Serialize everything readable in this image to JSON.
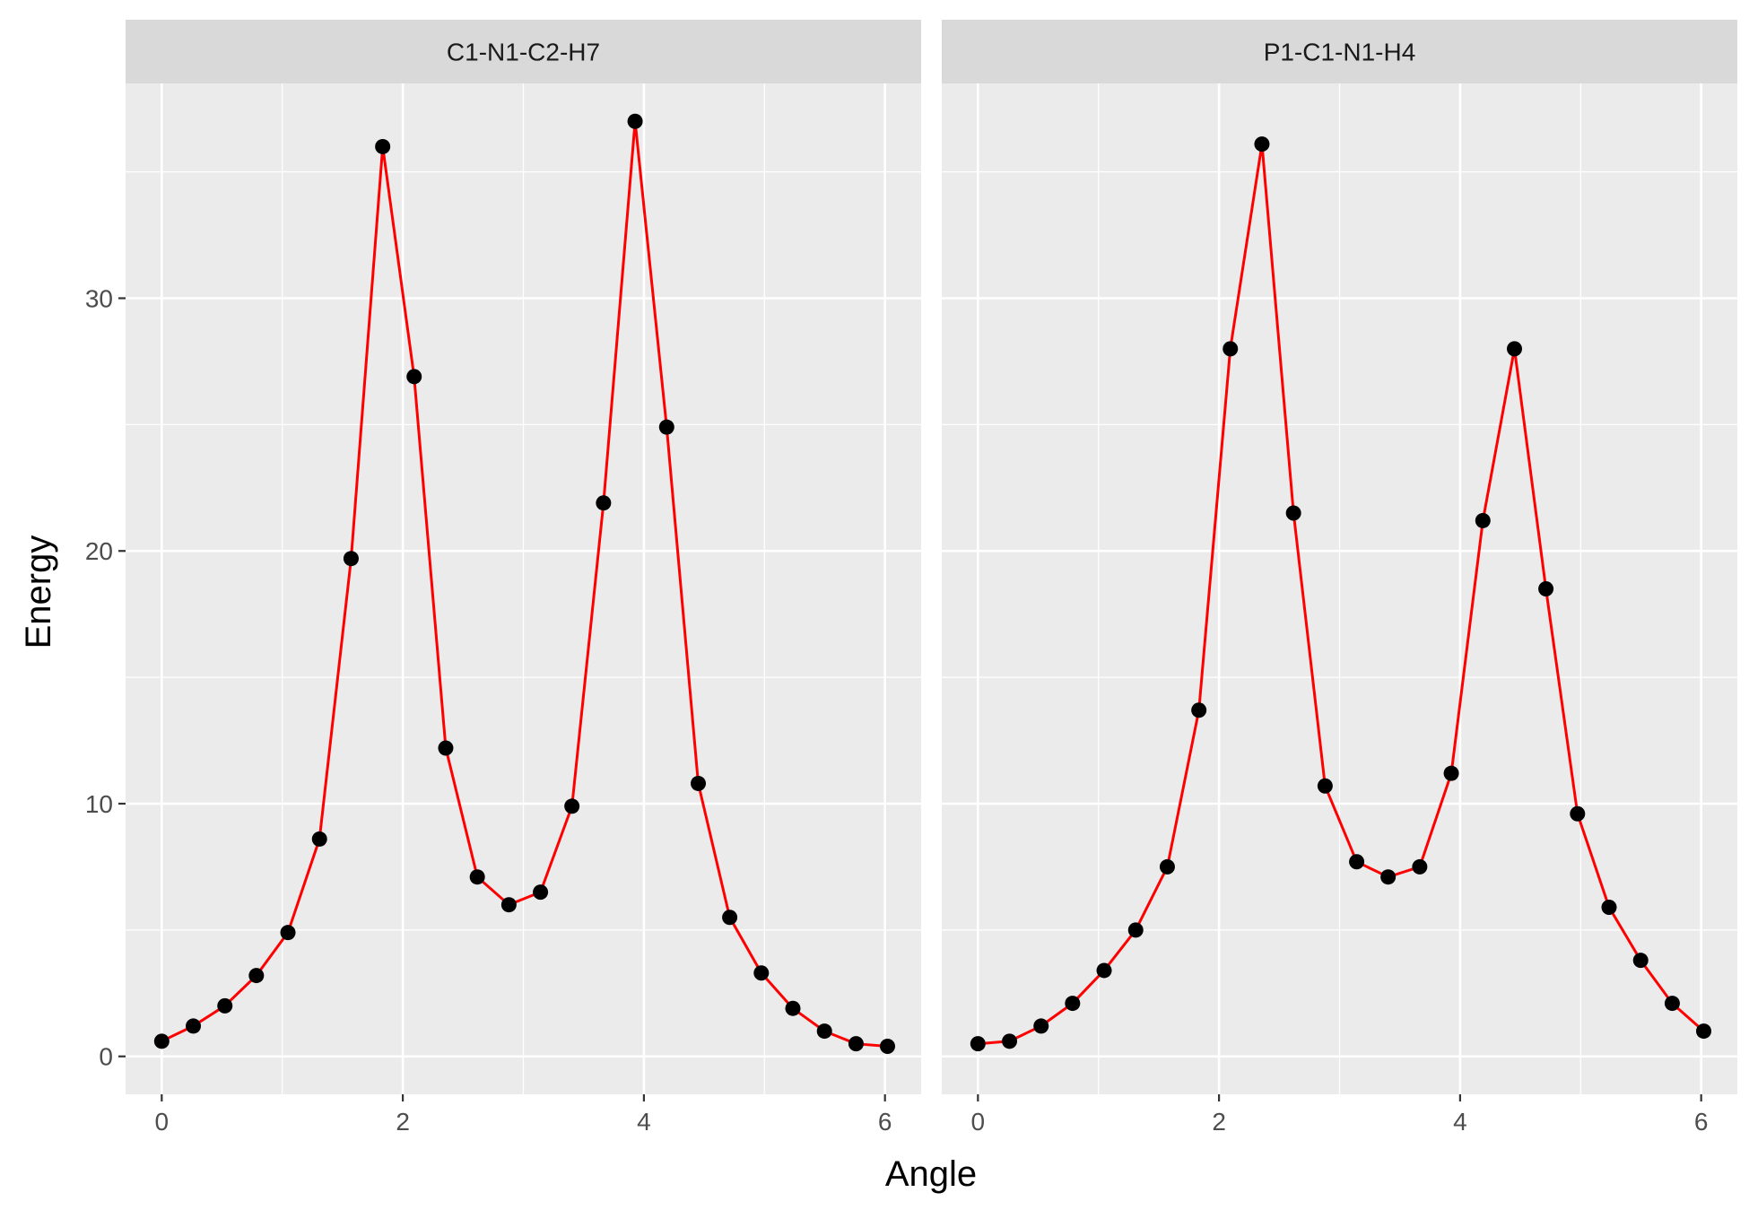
{
  "chart_data": {
    "type": "line",
    "xlabel": "Angle",
    "ylabel": "Energy",
    "xlim": [
      -0.3,
      6.3
    ],
    "ylim": [
      -1.5,
      38.5
    ],
    "x_ticks": [
      0,
      2,
      4,
      6
    ],
    "y_ticks": [
      0,
      10,
      20,
      30
    ],
    "grid": true,
    "line_color": "#ff0000",
    "point_color": "#000000",
    "panel_background": "#ebebeb",
    "strip_background": "#d9d9d9",
    "panels": [
      {
        "label": "C1-N1-C2-H7",
        "points": [
          [
            0.0,
            0.6
          ],
          [
            0.262,
            1.2
          ],
          [
            0.524,
            2.0
          ],
          [
            0.785,
            3.2
          ],
          [
            1.047,
            4.9
          ],
          [
            1.309,
            8.6
          ],
          [
            1.571,
            19.7
          ],
          [
            1.833,
            36.0
          ],
          [
            2.094,
            26.9
          ],
          [
            2.356,
            12.2
          ],
          [
            2.618,
            7.1
          ],
          [
            2.88,
            6.0
          ],
          [
            3.142,
            6.5
          ],
          [
            3.403,
            9.9
          ],
          [
            3.665,
            21.9
          ],
          [
            3.927,
            37.0
          ],
          [
            4.189,
            24.9
          ],
          [
            4.451,
            10.8
          ],
          [
            4.712,
            5.5
          ],
          [
            4.974,
            3.3
          ],
          [
            5.236,
            1.9
          ],
          [
            5.498,
            1.0
          ],
          [
            5.76,
            0.5
          ],
          [
            6.021,
            0.4
          ]
        ]
      },
      {
        "label": "P1-C1-N1-H4",
        "points": [
          [
            0.0,
            0.5
          ],
          [
            0.262,
            0.6
          ],
          [
            0.524,
            1.2
          ],
          [
            0.785,
            2.1
          ],
          [
            1.047,
            3.4
          ],
          [
            1.309,
            5.0
          ],
          [
            1.571,
            7.5
          ],
          [
            1.833,
            13.7
          ],
          [
            2.094,
            28.0
          ],
          [
            2.356,
            36.1
          ],
          [
            2.618,
            21.5
          ],
          [
            2.88,
            10.7
          ],
          [
            3.142,
            7.7
          ],
          [
            3.403,
            7.1
          ],
          [
            3.665,
            7.5
          ],
          [
            3.927,
            11.2
          ],
          [
            4.189,
            21.2
          ],
          [
            4.451,
            28.0
          ],
          [
            4.712,
            18.5
          ],
          [
            4.974,
            9.6
          ],
          [
            5.236,
            5.9
          ],
          [
            5.498,
            3.8
          ],
          [
            5.76,
            2.1
          ],
          [
            6.021,
            1.0
          ]
        ]
      }
    ]
  }
}
